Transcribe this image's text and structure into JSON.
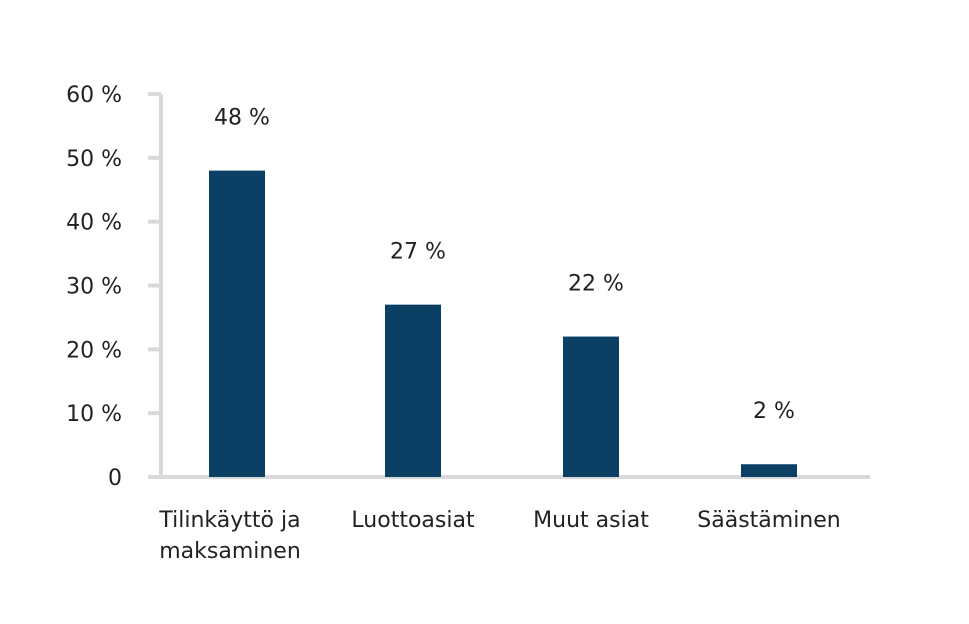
{
  "chart_data": {
    "type": "bar",
    "title": "",
    "xlabel": "",
    "ylabel": "",
    "categories": [
      [
        "Tilinkäyttö ja",
        "maksaminen"
      ],
      [
        "Luottoasiat"
      ],
      [
        "Muut asiat"
      ],
      [
        "Säästäminen"
      ]
    ],
    "values": [
      48,
      27,
      22,
      2
    ],
    "data_labels": [
      "48 %",
      "27 %",
      "22 %",
      "2 %"
    ],
    "yticks": [
      0,
      10,
      20,
      30,
      40,
      50,
      60
    ],
    "ytick_labels": [
      "0",
      "10 %",
      "20 %",
      "30 %",
      "40 %",
      "50 %",
      "60 %"
    ],
    "ylim": [
      0,
      60
    ],
    "grid": false,
    "bar_color": "#0b3f63",
    "axis_color": "#d9d9d9"
  }
}
